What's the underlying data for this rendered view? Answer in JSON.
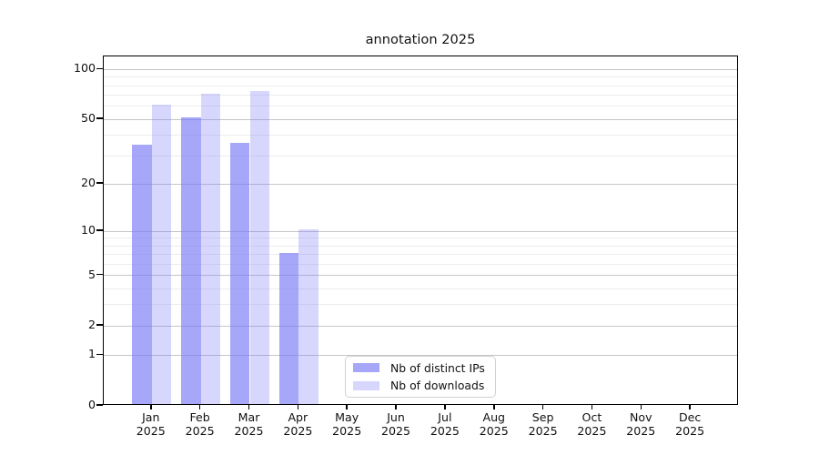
{
  "chart_data": {
    "type": "bar",
    "title": "annotation 2025",
    "categories": [
      "Jan",
      "Feb",
      "Mar",
      "Apr",
      "May",
      "Jun",
      "Jul",
      "Aug",
      "Sep",
      "Oct",
      "Nov",
      "Dec"
    ],
    "category_year": "2025",
    "series": [
      {
        "name": "Nb of distinct IPs",
        "color": "rgba(124,124,247,0.67)",
        "values": [
          34,
          50,
          35,
          7,
          0,
          0,
          0,
          0,
          0,
          0,
          0,
          0
        ]
      },
      {
        "name": "Nb of downloads",
        "color": "rgba(124,124,247,0.30)",
        "values": [
          60,
          70,
          72,
          10,
          0,
          0,
          0,
          0,
          0,
          0,
          0,
          0
        ]
      }
    ],
    "y_axis": {
      "scale": "symlog-log1p",
      "ticks": [
        100,
        50,
        20,
        10,
        5,
        2,
        1,
        0
      ],
      "minor_ticks": [
        90,
        80,
        70,
        60,
        40,
        30,
        9,
        8,
        7,
        6,
        4,
        3
      ],
      "range": [
        0,
        120
      ]
    },
    "x_axis": {
      "label_lines": 2
    },
    "grid": {
      "major_color": "#c6c6c6",
      "minor_color": "#ececec"
    },
    "colors": {
      "bar_base": "#7c7cf7",
      "axis": "#000000",
      "text": "#111111",
      "legend_border": "#d2d2d2"
    },
    "legend_position": "inside-bottom-center"
  }
}
